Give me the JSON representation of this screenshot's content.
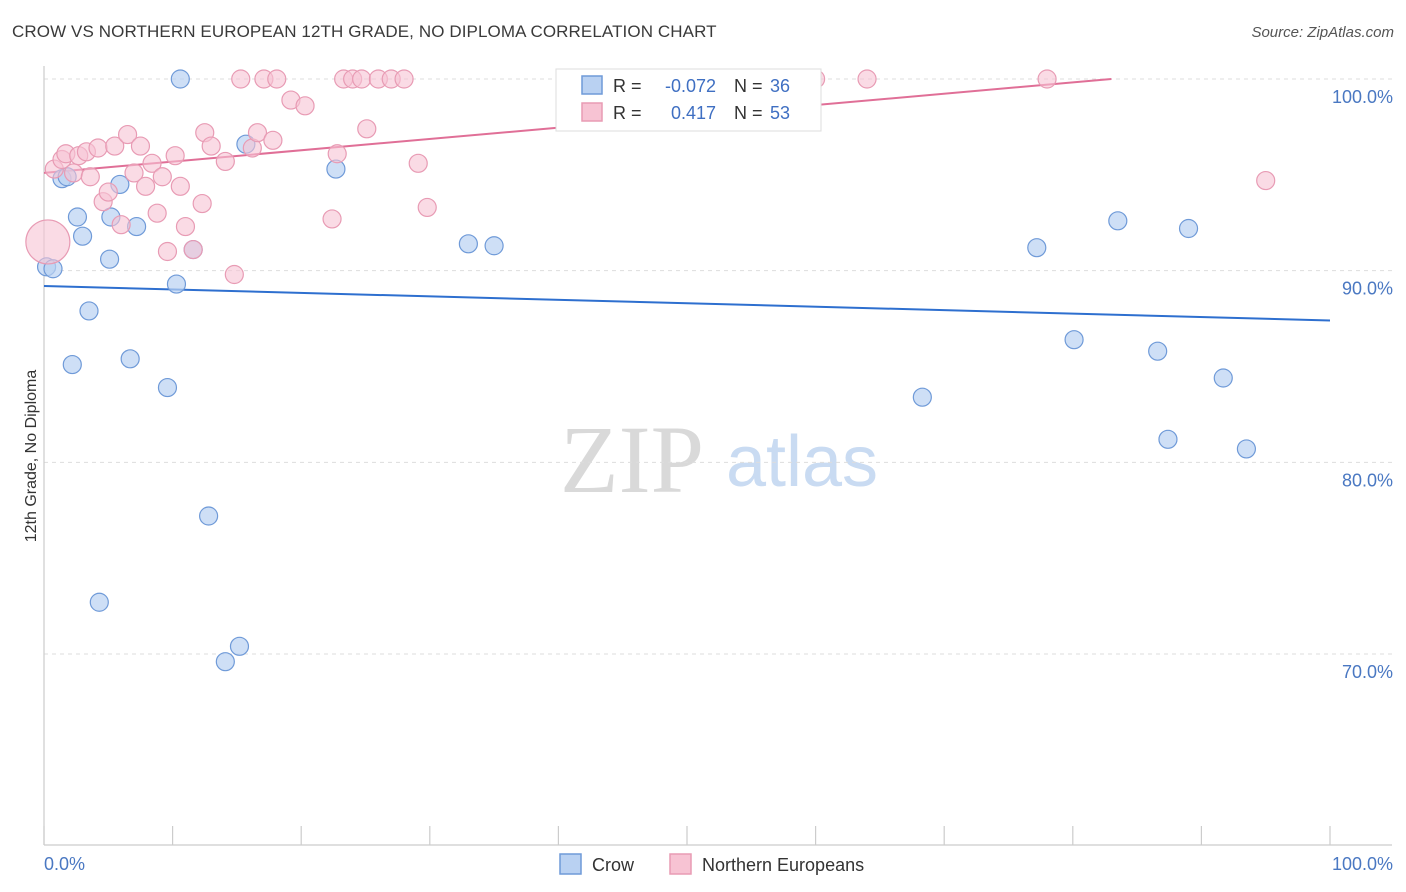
{
  "header": {
    "title": "CROW VS NORTHERN EUROPEAN 12TH GRADE, NO DIPLOMA CORRELATION CHART",
    "source": "Source: ZipAtlas.com"
  },
  "watermark": {
    "zip": "ZIP",
    "atlas": "atlas"
  },
  "colors": {
    "crow_fill": "#b9d1f2",
    "crow_stroke": "#6f9ad8",
    "crow_line": "#2e6fcf",
    "ne_fill": "#f7c3d3",
    "ne_stroke": "#e89bb4",
    "ne_line": "#e06f97",
    "grid": "#dddddd",
    "tick_text": "#4a78c2"
  },
  "stats": {
    "r_label": "R =",
    "n_label": "N =",
    "crow_r": "-0.072",
    "crow_n": "36",
    "ne_r": "0.417",
    "ne_n": "53"
  },
  "chart_data": {
    "type": "scatter",
    "title": "CROW VS NORTHERN EUROPEAN 12TH GRADE, NO DIPLOMA CORRELATION CHART",
    "xlabel": "",
    "ylabel": "12th Grade, No Diploma",
    "xlim": [
      0,
      100
    ],
    "ylim": [
      60,
      101.5
    ],
    "x_tick_labels": [
      "0.0%",
      "100.0%"
    ],
    "y_ticks": [
      70,
      80,
      90,
      100
    ],
    "y_tick_labels": [
      "70.0%",
      "80.0%",
      "90.0%",
      "100.0%"
    ],
    "grid": true,
    "legend_position": "bottom",
    "series": [
      {
        "name": "Crow",
        "color": "#b9d1f2",
        "trend": {
          "x": [
            0,
            100
          ],
          "y": [
            89.2,
            87.4
          ]
        },
        "points": [
          {
            "x": 0.2,
            "y": 90.2
          },
          {
            "x": 0.7,
            "y": 90.1
          },
          {
            "x": 1.4,
            "y": 94.8
          },
          {
            "x": 1.8,
            "y": 94.9
          },
          {
            "x": 2.6,
            "y": 92.8
          },
          {
            "x": 3.0,
            "y": 91.8
          },
          {
            "x": 3.5,
            "y": 87.9
          },
          {
            "x": 2.2,
            "y": 85.1
          },
          {
            "x": 5.1,
            "y": 90.6
          },
          {
            "x": 5.2,
            "y": 92.8
          },
          {
            "x": 5.9,
            "y": 94.5
          },
          {
            "x": 7.2,
            "y": 92.3
          },
          {
            "x": 6.7,
            "y": 85.4
          },
          {
            "x": 9.6,
            "y": 83.9
          },
          {
            "x": 10.3,
            "y": 89.3
          },
          {
            "x": 10.6,
            "y": 100.0
          },
          {
            "x": 11.6,
            "y": 91.1
          },
          {
            "x": 12.8,
            "y": 77.2
          },
          {
            "x": 14.1,
            "y": 69.6
          },
          {
            "x": 15.2,
            "y": 70.4
          },
          {
            "x": 15.7,
            "y": 96.6
          },
          {
            "x": 22.7,
            "y": 95.3
          },
          {
            "x": 33.0,
            "y": 91.4
          },
          {
            "x": 35.0,
            "y": 91.3
          },
          {
            "x": 44.0,
            "y": 100.0
          },
          {
            "x": 56.0,
            "y": 100.0
          },
          {
            "x": 68.3,
            "y": 83.4
          },
          {
            "x": 77.2,
            "y": 91.2
          },
          {
            "x": 80.1,
            "y": 86.4
          },
          {
            "x": 83.5,
            "y": 92.6
          },
          {
            "x": 86.6,
            "y": 85.8
          },
          {
            "x": 87.4,
            "y": 81.2
          },
          {
            "x": 89.0,
            "y": 92.2
          },
          {
            "x": 91.7,
            "y": 84.4
          },
          {
            "x": 93.5,
            "y": 80.7
          },
          {
            "x": 4.3,
            "y": 72.7
          }
        ]
      },
      {
        "name": "Northern Europeans",
        "color": "#f7c3d3",
        "trend": {
          "x": [
            0,
            83
          ],
          "y": [
            95.1,
            100.0
          ]
        },
        "points": [
          {
            "x": 0.3,
            "y": 91.5,
            "big": true
          },
          {
            "x": 0.8,
            "y": 95.3
          },
          {
            "x": 1.4,
            "y": 95.8
          },
          {
            "x": 1.7,
            "y": 96.1
          },
          {
            "x": 2.3,
            "y": 95.1
          },
          {
            "x": 2.7,
            "y": 96.0
          },
          {
            "x": 3.3,
            "y": 96.2
          },
          {
            "x": 3.6,
            "y": 94.9
          },
          {
            "x": 4.2,
            "y": 96.4
          },
          {
            "x": 4.6,
            "y": 93.6
          },
          {
            "x": 5.0,
            "y": 94.1
          },
          {
            "x": 5.5,
            "y": 96.5
          },
          {
            "x": 6.0,
            "y": 92.4
          },
          {
            "x": 6.5,
            "y": 97.1
          },
          {
            "x": 7.0,
            "y": 95.1
          },
          {
            "x": 7.5,
            "y": 96.5
          },
          {
            "x": 7.9,
            "y": 94.4
          },
          {
            "x": 8.4,
            "y": 95.6
          },
          {
            "x": 8.8,
            "y": 93.0
          },
          {
            "x": 9.2,
            "y": 94.9
          },
          {
            "x": 9.6,
            "y": 91.0
          },
          {
            "x": 10.2,
            "y": 96.0
          },
          {
            "x": 10.6,
            "y": 94.4
          },
          {
            "x": 11.0,
            "y": 92.3
          },
          {
            "x": 11.6,
            "y": 91.1
          },
          {
            "x": 12.3,
            "y": 93.5
          },
          {
            "x": 12.5,
            "y": 97.2
          },
          {
            "x": 13.0,
            "y": 96.5
          },
          {
            "x": 14.1,
            "y": 95.7
          },
          {
            "x": 14.8,
            "y": 89.8
          },
          {
            "x": 15.3,
            "y": 100.0
          },
          {
            "x": 16.2,
            "y": 96.4
          },
          {
            "x": 16.6,
            "y": 97.2
          },
          {
            "x": 17.1,
            "y": 100.0
          },
          {
            "x": 17.8,
            "y": 96.8
          },
          {
            "x": 18.1,
            "y": 100.0
          },
          {
            "x": 19.2,
            "y": 98.9
          },
          {
            "x": 20.3,
            "y": 98.6
          },
          {
            "x": 22.4,
            "y": 92.7
          },
          {
            "x": 22.8,
            "y": 96.1
          },
          {
            "x": 23.3,
            "y": 100.0
          },
          {
            "x": 24.0,
            "y": 100.0
          },
          {
            "x": 24.7,
            "y": 100.0
          },
          {
            "x": 25.1,
            "y": 97.4
          },
          {
            "x": 26.0,
            "y": 100.0
          },
          {
            "x": 27.0,
            "y": 100.0
          },
          {
            "x": 28.0,
            "y": 100.0
          },
          {
            "x": 29.1,
            "y": 95.6
          },
          {
            "x": 29.8,
            "y": 93.3
          },
          {
            "x": 60.0,
            "y": 100.0
          },
          {
            "x": 64.0,
            "y": 100.0
          },
          {
            "x": 78.0,
            "y": 100.0
          },
          {
            "x": 95.0,
            "y": 94.7
          }
        ]
      }
    ]
  }
}
